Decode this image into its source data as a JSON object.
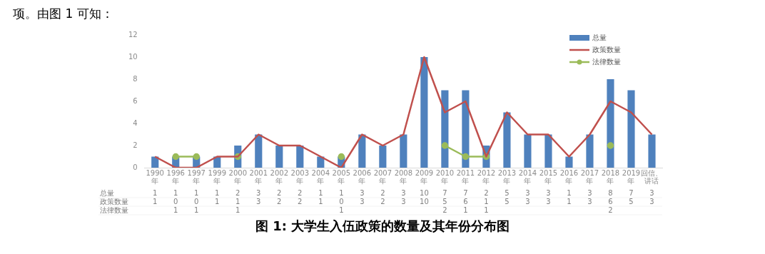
{
  "chart_data": {
    "type": "bar",
    "title": "图 1:    大学生入伍政策的数量及其年份分布图",
    "annotations": [
      "项。由图 1 可知："
    ],
    "categories": [
      "1990年",
      "1996年",
      "1997年",
      "1999年",
      "2000年",
      "2001年",
      "2002年",
      "2003年",
      "2004年",
      "2005年",
      "2006年",
      "2007年",
      "2008年",
      "2009年",
      "2010年",
      "2011年",
      "2012年",
      "2013年",
      "2014年",
      "2015年",
      "2016年",
      "2017年",
      "2018年",
      "2019年",
      "回信、讲话"
    ],
    "series": [
      {
        "name": "总量",
        "color": "#4f81bd",
        "values": [
          1,
          1,
          1,
          1,
          2,
          3,
          2,
          2,
          1,
          1,
          3,
          2,
          3,
          10,
          7,
          7,
          2,
          5,
          3,
          3,
          1,
          3,
          8,
          7,
          3
        ]
      },
      {
        "name": "政策数量",
        "type": "line",
        "marker": "none",
        "color": "#c0504d",
        "values": [
          1,
          0,
          0,
          1,
          1,
          3,
          2,
          2,
          1,
          0,
          3,
          2,
          3,
          10,
          5,
          6,
          1,
          5,
          3,
          3,
          1,
          3,
          6,
          5,
          3
        ]
      },
      {
        "name": "法律数量",
        "type": "line",
        "marker": "circle",
        "color": "#9bbb59",
        "values": [
          null,
          1,
          1,
          null,
          1,
          null,
          null,
          null,
          null,
          1,
          null,
          null,
          null,
          null,
          2,
          1,
          1,
          null,
          null,
          null,
          null,
          null,
          2,
          null,
          null
        ]
      }
    ],
    "ylim": [
      0,
      12
    ],
    "yticks": [
      0,
      2,
      4,
      6,
      8,
      10,
      12
    ],
    "grid": false,
    "legend": "top right",
    "data_labels": true
  }
}
